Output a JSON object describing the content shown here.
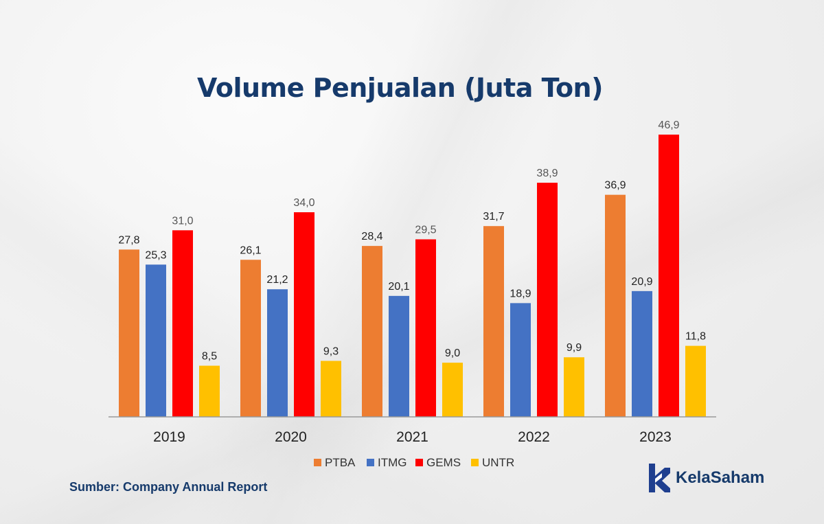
{
  "chart_data": {
    "type": "bar",
    "title": "Volume Penjualan (Juta Ton)",
    "categories": [
      "2019",
      "2020",
      "2021",
      "2022",
      "2023"
    ],
    "series": [
      {
        "name": "PTBA",
        "color": "#ED7D31",
        "values": [
          27.8,
          26.1,
          28.4,
          31.7,
          36.9
        ],
        "labels": [
          "27,8",
          "26,1",
          "28,4",
          "31,7",
          "36,9"
        ]
      },
      {
        "name": "ITMG",
        "color": "#4472C4",
        "values": [
          25.3,
          21.2,
          20.1,
          18.9,
          20.9
        ],
        "labels": [
          "25,3",
          "21,2",
          "20,1",
          "18,9",
          "20,9"
        ]
      },
      {
        "name": "GEMS",
        "color": "#FF0000",
        "values": [
          31.0,
          34.0,
          29.5,
          38.9,
          46.9
        ],
        "labels": [
          "31,0",
          "34,0",
          "29,5",
          "38,9",
          "46,9"
        ]
      },
      {
        "name": "UNTR",
        "color": "#FFC000",
        "values": [
          8.5,
          9.3,
          9.0,
          9.9,
          11.8
        ],
        "labels": [
          "8,5",
          "9,3",
          "9,0",
          "9,9",
          "11,8"
        ]
      }
    ],
    "ylim": [
      0,
      48
    ],
    "grid": false,
    "legend_position": "bottom"
  },
  "source_text": "Sumber: Company Annual Report",
  "brand": {
    "name": "KelaSaham",
    "color": "#163a6b",
    "logo_icon": "kelasaham-logo-icon"
  }
}
